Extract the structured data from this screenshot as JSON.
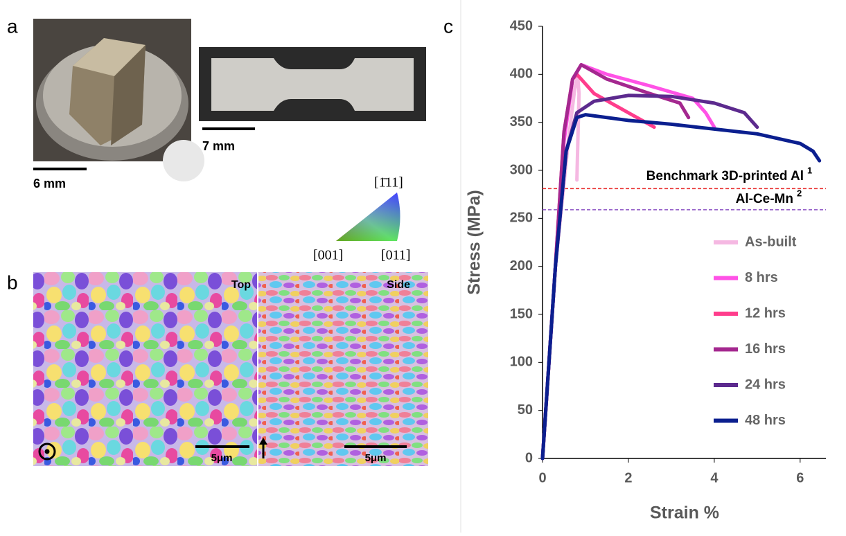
{
  "panels": {
    "a": {
      "label": "a",
      "scale_bars": [
        "6 mm",
        "7 mm"
      ]
    },
    "b": {
      "label": "b",
      "views": [
        "Top",
        "Side"
      ],
      "scale_bars": [
        "5μm",
        "5μm"
      ]
    },
    "ipf_key": {
      "corners": [
        "[1̄11]",
        "[001]",
        "[011]"
      ]
    },
    "c": {
      "label": "c"
    }
  },
  "chart_data": {
    "type": "line",
    "x_label": "Strain %",
    "y_label": "Stress (MPa)",
    "xlim": [
      0,
      6.6
    ],
    "xticks": [
      0,
      2,
      4,
      6
    ],
    "ylim": [
      0,
      450
    ],
    "yticks": [
      0,
      50,
      100,
      150,
      200,
      250,
      300,
      350,
      400,
      450
    ],
    "grid": false,
    "legend": "right",
    "reference_lines": [
      {
        "label": "Benchmark 3D-printed Al",
        "superscript": "1",
        "value": 281,
        "color": "#e82a2a"
      },
      {
        "label": "Al-Ce-Mn",
        "superscript": "2",
        "value": 259,
        "color": "#8a4fc2"
      }
    ],
    "series": [
      {
        "name": "As-built",
        "color": "#f5b8e2",
        "x": [
          0,
          0.3,
          0.6,
          0.75,
          0.82,
          0.85,
          0.8
        ],
        "values": [
          0,
          200,
          330,
          385,
          398,
          380,
          290
        ]
      },
      {
        "name": "8 hrs",
        "color": "#ff52e6",
        "x": [
          0,
          0.3,
          0.5,
          0.7,
          0.9,
          1.5,
          2.5,
          3.5,
          3.8,
          4.0
        ],
        "values": [
          0,
          200,
          330,
          395,
          410,
          400,
          388,
          375,
          360,
          345
        ]
      },
      {
        "name": "12 hrs",
        "color": "#ff3d8c",
        "x": [
          0,
          0.3,
          0.5,
          0.7,
          0.8,
          1.2,
          2.0,
          2.6
        ],
        "values": [
          0,
          200,
          340,
          395,
          400,
          380,
          360,
          345
        ]
      },
      {
        "name": "16 hrs",
        "color": "#a4288f",
        "x": [
          0,
          0.3,
          0.5,
          0.7,
          0.9,
          1.5,
          2.5,
          3.2,
          3.4
        ],
        "values": [
          0,
          200,
          340,
          395,
          410,
          395,
          380,
          370,
          355
        ]
      },
      {
        "name": "24 hrs",
        "color": "#5c2a8e",
        "x": [
          0,
          0.3,
          0.55,
          0.8,
          1.2,
          2.0,
          3.0,
          4.0,
          4.7,
          5.0
        ],
        "values": [
          0,
          200,
          320,
          360,
          372,
          378,
          377,
          370,
          360,
          345
        ]
      },
      {
        "name": "48 hrs",
        "color": "#0b1f8f",
        "x": [
          0,
          0.3,
          0.55,
          0.8,
          1.0,
          2.0,
          3.0,
          4.0,
          5.0,
          6.0,
          6.3,
          6.45
        ],
        "values": [
          0,
          200,
          320,
          355,
          358,
          352,
          348,
          343,
          338,
          328,
          320,
          310
        ]
      }
    ]
  }
}
